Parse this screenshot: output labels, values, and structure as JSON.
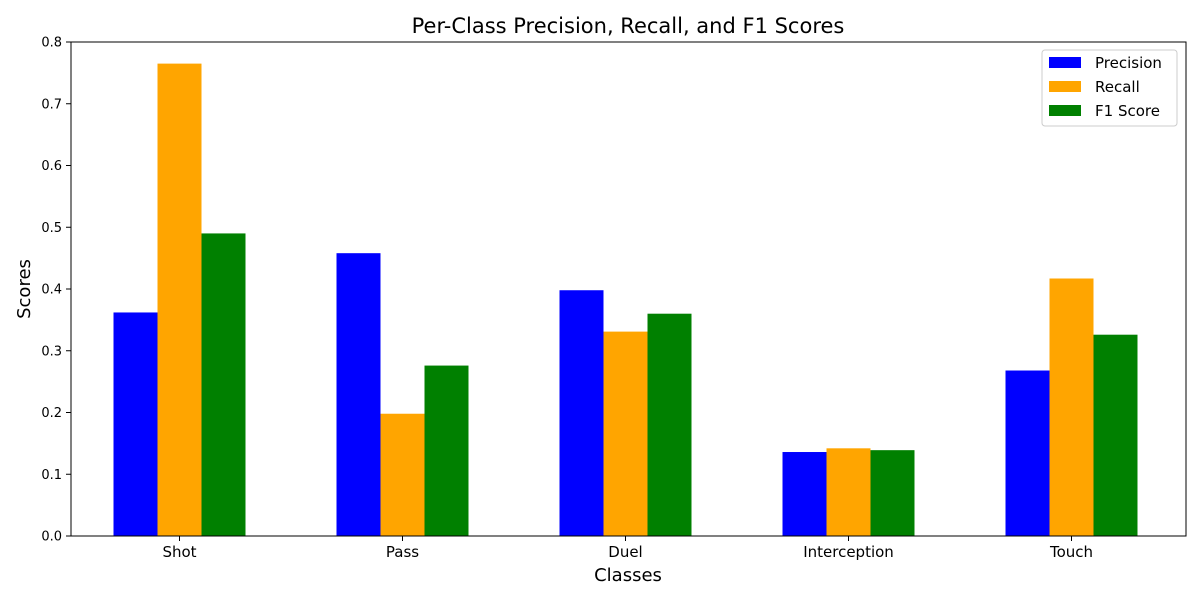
{
  "chart_data": {
    "type": "bar",
    "title": "Per-Class Precision, Recall, and F1 Scores",
    "xlabel": "Classes",
    "ylabel": "Scores",
    "categories": [
      "Shot",
      "Pass",
      "Duel",
      "Interception",
      "Touch"
    ],
    "series": [
      {
        "name": "Precision",
        "color": "#0000ff",
        "values": [
          0.362,
          0.458,
          0.398,
          0.136,
          0.268
        ]
      },
      {
        "name": "Recall",
        "color": "#ffa500",
        "values": [
          0.765,
          0.198,
          0.331,
          0.142,
          0.417
        ]
      },
      {
        "name": "F1 Score",
        "color": "#008000",
        "values": [
          0.49,
          0.276,
          0.36,
          0.139,
          0.326
        ]
      }
    ],
    "ylim": [
      0,
      0.8
    ],
    "yticks": [
      "0.0",
      "0.1",
      "0.2",
      "0.3",
      "0.4",
      "0.5",
      "0.6",
      "0.7",
      "0.8"
    ],
    "grid": false,
    "legend_position": "top-right"
  }
}
